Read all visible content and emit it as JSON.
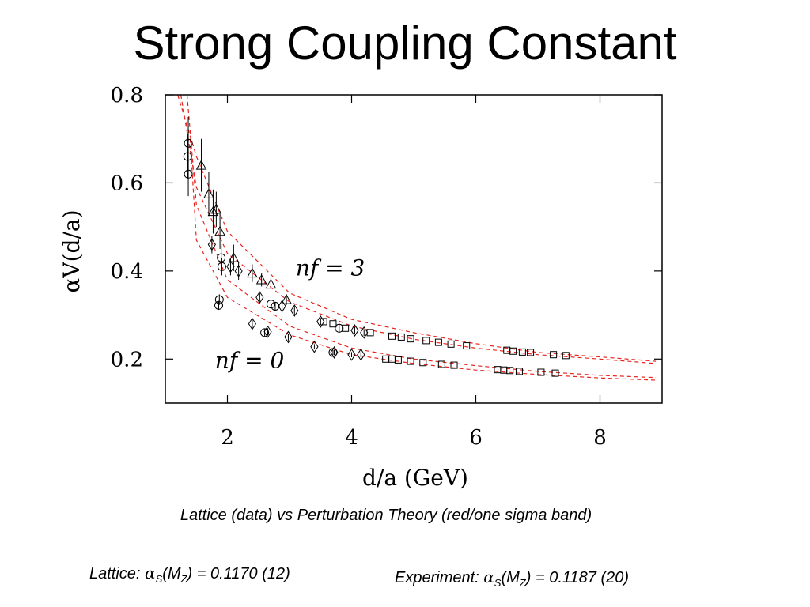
{
  "slide": {
    "title": "Strong Coupling Constant",
    "caption": "Lattice (data)  vs  Perturbation Theory (red/one sigma band)",
    "lattice_result": {
      "label": "Lattice:",
      "symbol": "α",
      "sub1": "S",
      "arg_open": "(M",
      "sub2": "Z",
      "value": ") = 0.1170 (12)"
    },
    "experiment_result": {
      "label": "Experiment:",
      "symbol": "α",
      "sub1": "S",
      "arg_open": "(M",
      "sub2": "Z",
      "value": ") = 0.1187 (20)"
    }
  },
  "chart_data": {
    "type": "scatter",
    "xlabel": "d/a (GeV)",
    "ylabel": "αV(d/a)",
    "xlim": [
      1.0,
      9.0
    ],
    "ylim": [
      0.1,
      0.8
    ],
    "xticks": [
      2,
      4,
      6,
      8
    ],
    "yticks": [
      0.2,
      0.4,
      0.6,
      0.8
    ],
    "grid": false,
    "annotations": [
      {
        "text": "nf = 3",
        "x": 3.1,
        "y": 0.39
      },
      {
        "text": "nf = 0",
        "x": 1.8,
        "y": 0.18
      }
    ],
    "colors": {
      "band": "#e8251f",
      "markers": "#000000"
    },
    "series": [
      {
        "marker": "circle",
        "points": [
          {
            "x": 1.37,
            "y": 0.69,
            "err": 0.06
          },
          {
            "x": 1.36,
            "y": 0.66,
            "err": 0.05
          },
          {
            "x": 1.37,
            "y": 0.62,
            "err": 0.05
          },
          {
            "x": 1.9,
            "y": 0.43,
            "err": 0.03
          },
          {
            "x": 1.91,
            "y": 0.41,
            "err": 0.02
          },
          {
            "x": 1.87,
            "y": 0.335,
            "err": 0.012
          },
          {
            "x": 1.86,
            "y": 0.322,
            "err": 0.01
          },
          {
            "x": 2.7,
            "y": 0.325,
            "err": 0.012
          },
          {
            "x": 2.77,
            "y": 0.32,
            "err": 0.01
          },
          {
            "x": 2.6,
            "y": 0.26,
            "err": 0.008
          },
          {
            "x": 3.7,
            "y": 0.215,
            "err": 0.006
          },
          {
            "x": 3.8,
            "y": 0.27,
            "err": 0.01
          }
        ]
      },
      {
        "marker": "triangle",
        "points": [
          {
            "x": 1.58,
            "y": 0.64,
            "err": 0.06
          },
          {
            "x": 1.7,
            "y": 0.575,
            "err": 0.05
          },
          {
            "x": 1.77,
            "y": 0.535,
            "err": 0.05
          },
          {
            "x": 1.82,
            "y": 0.54,
            "err": 0.04
          },
          {
            "x": 1.88,
            "y": 0.49,
            "err": 0.04
          },
          {
            "x": 2.1,
            "y": 0.43,
            "err": 0.03
          },
          {
            "x": 2.4,
            "y": 0.395,
            "err": 0.02
          },
          {
            "x": 2.55,
            "y": 0.38,
            "err": 0.015
          },
          {
            "x": 2.7,
            "y": 0.37,
            "err": 0.015
          },
          {
            "x": 2.95,
            "y": 0.335,
            "err": 0.012
          }
        ]
      },
      {
        "marker": "diamond",
        "points": [
          {
            "x": 1.75,
            "y": 0.46,
            "err": 0.02
          },
          {
            "x": 2.05,
            "y": 0.41,
            "err": 0.02
          },
          {
            "x": 2.18,
            "y": 0.4,
            "err": 0.02
          },
          {
            "x": 2.52,
            "y": 0.34,
            "err": 0.01
          },
          {
            "x": 2.88,
            "y": 0.32,
            "err": 0.01
          },
          {
            "x": 3.08,
            "y": 0.31,
            "err": 0.01
          },
          {
            "x": 3.5,
            "y": 0.285,
            "err": 0.008
          },
          {
            "x": 4.05,
            "y": 0.265,
            "err": 0.008
          },
          {
            "x": 4.2,
            "y": 0.26,
            "err": 0.008
          },
          {
            "x": 2.4,
            "y": 0.28,
            "err": 0.01
          },
          {
            "x": 2.65,
            "y": 0.262,
            "err": 0.008
          },
          {
            "x": 2.98,
            "y": 0.25,
            "err": 0.008
          },
          {
            "x": 3.4,
            "y": 0.228,
            "err": 0.006
          },
          {
            "x": 3.72,
            "y": 0.215,
            "err": 0.006
          },
          {
            "x": 4.0,
            "y": 0.21,
            "err": 0.006
          },
          {
            "x": 4.15,
            "y": 0.21,
            "err": 0.006
          }
        ]
      },
      {
        "marker": "square",
        "points": [
          {
            "x": 3.55,
            "y": 0.285
          },
          {
            "x": 3.7,
            "y": 0.28
          },
          {
            "x": 3.9,
            "y": 0.27
          },
          {
            "x": 4.3,
            "y": 0.26
          },
          {
            "x": 4.65,
            "y": 0.252
          },
          {
            "x": 4.8,
            "y": 0.25
          },
          {
            "x": 4.95,
            "y": 0.246
          },
          {
            "x": 5.2,
            "y": 0.242
          },
          {
            "x": 5.4,
            "y": 0.238
          },
          {
            "x": 5.6,
            "y": 0.234
          },
          {
            "x": 5.85,
            "y": 0.23
          },
          {
            "x": 6.5,
            "y": 0.22
          },
          {
            "x": 6.6,
            "y": 0.218
          },
          {
            "x": 6.75,
            "y": 0.216
          },
          {
            "x": 6.88,
            "y": 0.215
          },
          {
            "x": 7.25,
            "y": 0.21
          },
          {
            "x": 7.45,
            "y": 0.208
          },
          {
            "x": 4.55,
            "y": 0.2
          },
          {
            "x": 4.65,
            "y": 0.2
          },
          {
            "x": 4.75,
            "y": 0.198
          },
          {
            "x": 4.95,
            "y": 0.195
          },
          {
            "x": 5.15,
            "y": 0.192
          },
          {
            "x": 5.45,
            "y": 0.188
          },
          {
            "x": 5.65,
            "y": 0.186
          },
          {
            "x": 6.35,
            "y": 0.176
          },
          {
            "x": 6.45,
            "y": 0.175
          },
          {
            "x": 6.55,
            "y": 0.174
          },
          {
            "x": 6.7,
            "y": 0.172
          },
          {
            "x": 7.05,
            "y": 0.17
          },
          {
            "x": 7.28,
            "y": 0.168
          }
        ]
      }
    ],
    "bands": [
      {
        "name": "nf = 3",
        "upper": [
          [
            1.2,
            0.8
          ],
          [
            1.5,
            0.66
          ],
          [
            2,
            0.49
          ],
          [
            3,
            0.35
          ],
          [
            4,
            0.29
          ],
          [
            5,
            0.26
          ],
          [
            6,
            0.235
          ],
          [
            7,
            0.215
          ],
          [
            8,
            0.205
          ],
          [
            8.9,
            0.195
          ]
        ],
        "lower": [
          [
            1.25,
            0.8
          ],
          [
            1.5,
            0.59
          ],
          [
            2,
            0.44
          ],
          [
            3,
            0.33
          ],
          [
            4,
            0.275
          ],
          [
            5,
            0.245
          ],
          [
            6,
            0.225
          ],
          [
            7,
            0.21
          ],
          [
            8,
            0.2
          ],
          [
            8.9,
            0.19
          ]
        ]
      },
      {
        "name": "nf = 0",
        "upper": [
          [
            1.35,
            0.8
          ],
          [
            1.5,
            0.55
          ],
          [
            2,
            0.38
          ],
          [
            3,
            0.275
          ],
          [
            4,
            0.225
          ],
          [
            5,
            0.2
          ],
          [
            6,
            0.185
          ],
          [
            7,
            0.172
          ],
          [
            8,
            0.163
          ],
          [
            8.9,
            0.158
          ]
        ],
        "lower": [
          [
            1.4,
            0.7
          ],
          [
            1.5,
            0.47
          ],
          [
            2,
            0.34
          ],
          [
            3,
            0.255
          ],
          [
            4,
            0.21
          ],
          [
            5,
            0.19
          ],
          [
            6,
            0.175
          ],
          [
            7,
            0.165
          ],
          [
            8,
            0.157
          ],
          [
            8.9,
            0.152
          ]
        ]
      }
    ]
  }
}
